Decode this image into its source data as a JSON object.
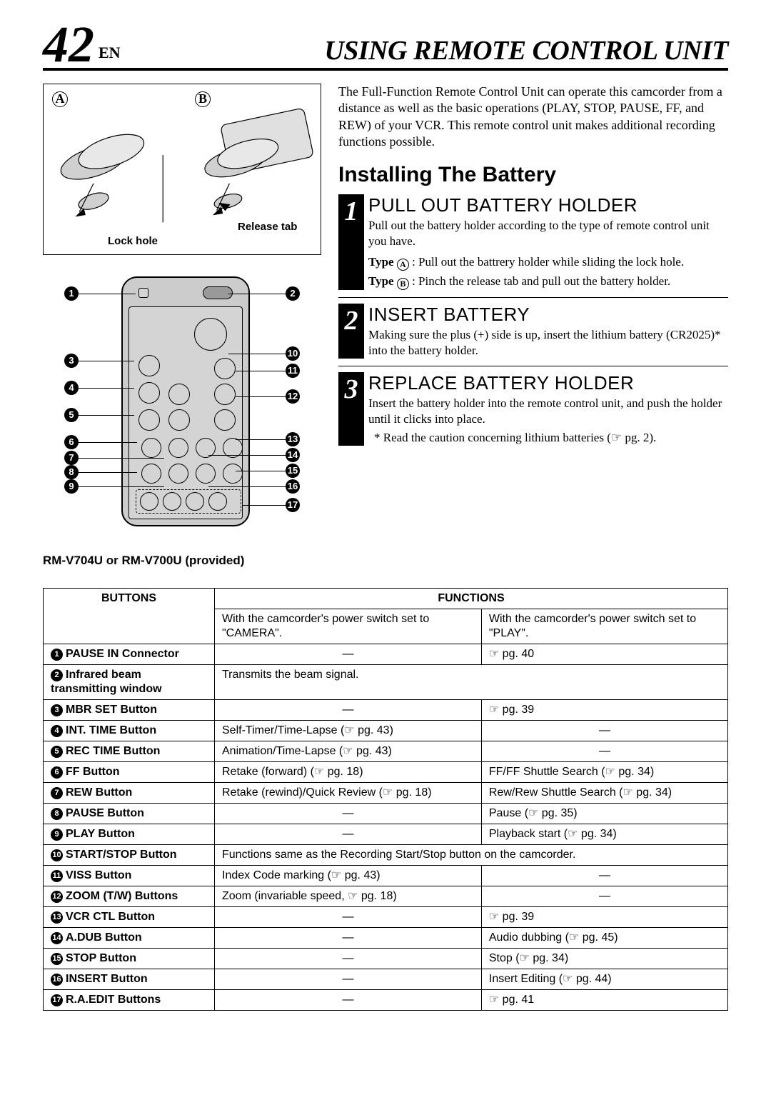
{
  "header": {
    "page_number": "42",
    "lang": "EN",
    "title": "USING REMOTE CONTROL UNIT"
  },
  "diagram": {
    "label_a": "A",
    "label_b": "B",
    "lock_hole": "Lock hole",
    "release_tab": "Release tab",
    "remote_caption": "RM-V704U or RM-V700U (provided)"
  },
  "intro": "The Full-Function Remote Control Unit can operate this camcorder from a distance as well as the basic operations (PLAY, STOP, PAUSE, FF, and REW) of your VCR. This remote control unit makes additional recording functions possible.",
  "section_title": "Installing The Battery",
  "steps": [
    {
      "num": "1",
      "title": "PULL OUT BATTERY HOLDER",
      "text": "Pull out the battery holder according to the type of remote control unit you have.",
      "typeA_label": "Type",
      "typeA_letter": "A",
      "typeA_text": ": Pull out the battrery holder while sliding the lock hole.",
      "typeB_label": "Type",
      "typeB_letter": "B",
      "typeB_text": ": Pinch the release tab and pull out the battery holder."
    },
    {
      "num": "2",
      "title": "INSERT BATTERY",
      "text": "Making sure the plus (+) side is up, insert the lithium battery (CR2025)* into the battery holder."
    },
    {
      "num": "3",
      "title": "REPLACE BATTERY HOLDER",
      "text": "Insert the battery holder into the remote control unit, and push the holder until it clicks into place.",
      "note": "* Read the caution concerning lithium batteries (☞ pg. 2)."
    }
  ],
  "table": {
    "head_buttons": "BUTTONS",
    "head_functions": "FUNCTIONS",
    "subhead_camera": "With the camcorder's power switch set to \"CAMERA\".",
    "subhead_play": "With the camcorder's power switch set to \"PLAY\".",
    "rows": [
      {
        "n": "1",
        "btn": "PAUSE IN Connector",
        "cam": "—",
        "play": "☞ pg. 40"
      },
      {
        "n": "2",
        "btn": "Infrared beam transmitting window",
        "span": "Transmits the beam signal."
      },
      {
        "n": "3",
        "btn": "MBR SET Button",
        "cam": "—",
        "play": "☞ pg. 39"
      },
      {
        "n": "4",
        "btn": "INT. TIME Button",
        "cam": "Self-Timer/Time-Lapse (☞ pg. 43)",
        "play": "—"
      },
      {
        "n": "5",
        "btn": "REC TIME Button",
        "cam": "Animation/Time-Lapse (☞ pg. 43)",
        "play": "—"
      },
      {
        "n": "6",
        "btn": "FF Button",
        "cam": "Retake (forward) (☞ pg. 18)",
        "play": "FF/FF Shuttle Search (☞ pg. 34)"
      },
      {
        "n": "7",
        "btn": "REW Button",
        "cam": "Retake (rewind)/Quick Review (☞ pg. 18)",
        "play": "Rew/Rew Shuttle Search (☞ pg. 34)"
      },
      {
        "n": "8",
        "btn": "PAUSE Button",
        "cam": "—",
        "play": "Pause (☞ pg. 35)"
      },
      {
        "n": "9",
        "btn": "PLAY Button",
        "cam": "—",
        "play": "Playback start (☞ pg. 34)"
      },
      {
        "n": "10",
        "btn": "START/STOP Button",
        "span": "Functions same as the Recording Start/Stop button on the camcorder."
      },
      {
        "n": "11",
        "btn": "VISS Button",
        "cam": "Index Code marking (☞ pg. 43)",
        "play": "—"
      },
      {
        "n": "12",
        "btn": "ZOOM (T/W) Buttons",
        "cam": "Zoom (invariable speed, ☞ pg. 18)",
        "play": "—"
      },
      {
        "n": "13",
        "btn": "VCR CTL Button",
        "cam": "—",
        "play": "☞ pg. 39"
      },
      {
        "n": "14",
        "btn": "A.DUB Button",
        "cam": "—",
        "play": "Audio dubbing (☞ pg. 45)"
      },
      {
        "n": "15",
        "btn": "STOP Button",
        "cam": "—",
        "play": "Stop (☞ pg. 34)"
      },
      {
        "n": "16",
        "btn": "INSERT Button",
        "cam": "—",
        "play": "Insert Editing (☞ pg. 44)"
      },
      {
        "n": "17",
        "btn": "R.A.EDIT Buttons",
        "cam": "—",
        "play": "☞ pg. 41"
      }
    ]
  }
}
